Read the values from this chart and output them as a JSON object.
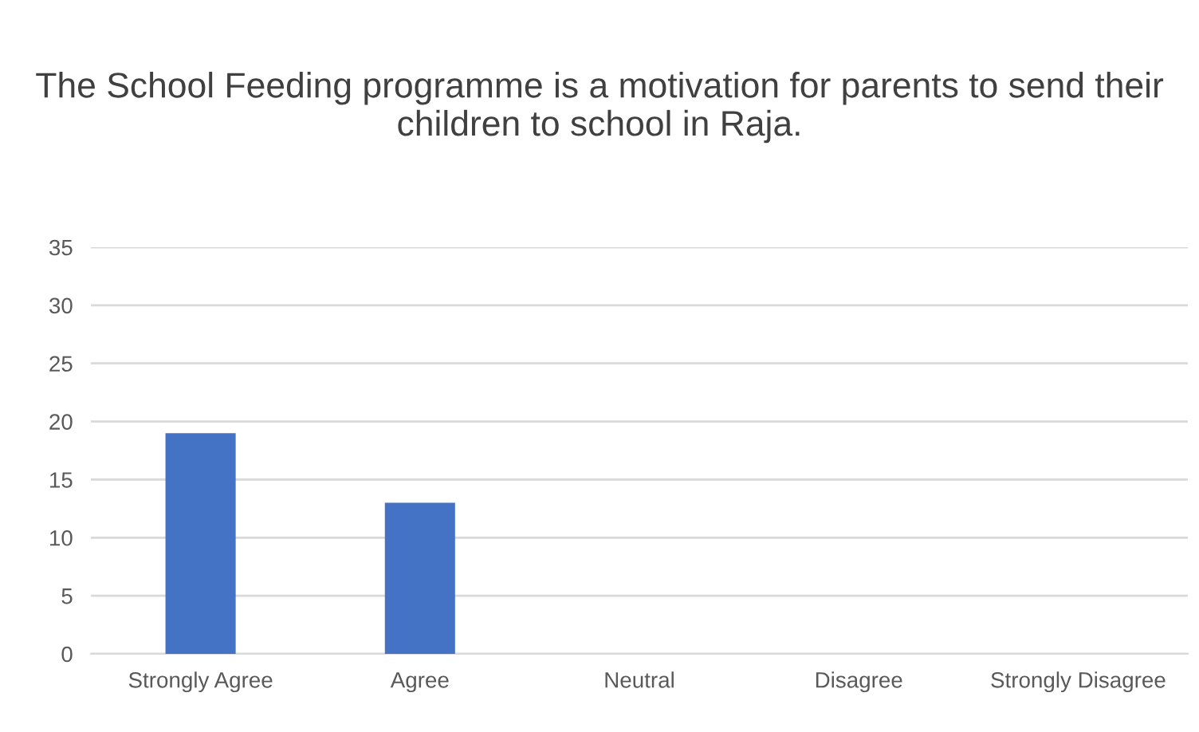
{
  "chart_data": {
    "type": "bar",
    "title": "The School Feeding programme is a motivation for parents to send their children to school in Raja.",
    "categories": [
      "Strongly Agree",
      "Agree",
      "Neutral",
      "Disagree",
      "Strongly Disagree"
    ],
    "values": [
      19,
      13,
      0,
      0,
      0
    ],
    "color": "#4472c4",
    "ylim": [
      0,
      35
    ],
    "yticks": [
      0,
      5,
      10,
      15,
      20,
      25,
      30,
      35
    ],
    "grid": "y",
    "legend": false
  }
}
